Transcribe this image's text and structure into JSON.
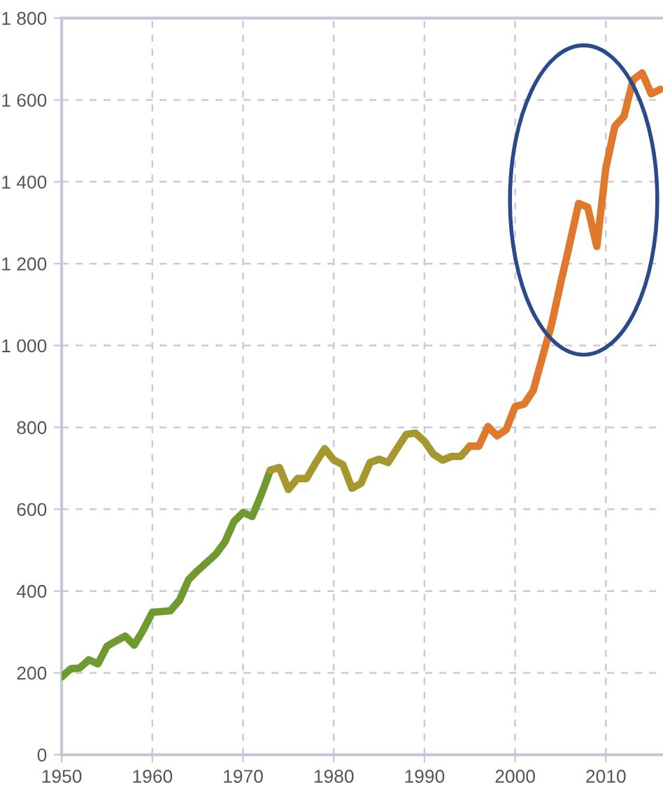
{
  "chart_data": {
    "type": "line",
    "series": [
      {
        "color": "#6f9a2f",
        "x": [
          1950,
          1951,
          1952,
          1953,
          1954,
          1955,
          1956,
          1957,
          1958,
          1959,
          1960,
          1961,
          1962,
          1963,
          1964,
          1965,
          1966,
          1967,
          1968,
          1969,
          1970,
          1971,
          1972,
          1973
        ],
        "values": [
          190,
          210,
          212,
          232,
          222,
          265,
          278,
          290,
          268,
          305,
          348,
          350,
          352,
          378,
          428,
          450,
          470,
          490,
          520,
          570,
          592,
          582,
          635,
          695
        ]
      },
      {
        "color": "#a6982f",
        "x": [
          1973,
          1974,
          1975,
          1976,
          1977,
          1978,
          1979,
          1980,
          1981,
          1982,
          1983,
          1984,
          1985,
          1986,
          1987,
          1988,
          1989,
          1990,
          1991,
          1992,
          1993,
          1994,
          1995
        ],
        "values": [
          695,
          702,
          648,
          675,
          675,
          713,
          748,
          720,
          709,
          651,
          663,
          714,
          722,
          714,
          749,
          783,
          786,
          766,
          734,
          720,
          729,
          729,
          754
        ]
      },
      {
        "color": "#e0782e",
        "x": [
          1995,
          1996,
          1997,
          1998,
          1999,
          2000,
          2001,
          2002,
          2003,
          2004,
          2005,
          2006,
          2007,
          2008,
          2009,
          2010,
          2011,
          2012,
          2013,
          2014,
          2015,
          2016
        ],
        "values": [
          754,
          754,
          802,
          779,
          794,
          851,
          857,
          890,
          971,
          1050,
          1151,
          1247,
          1347,
          1338,
          1242,
          1434,
          1536,
          1560,
          1649,
          1666,
          1615,
          1626
        ]
      }
    ],
    "xlim": [
      1950,
      2016.3
    ],
    "xticks": [
      1950,
      1960,
      1970,
      1980,
      1990,
      2000,
      2010
    ],
    "ylim": [
      0,
      1800
    ],
    "yticks": [
      0,
      200,
      400,
      600,
      800,
      {
        "value": 1000,
        "label": "1 000"
      },
      {
        "value": 1200,
        "label": "1 200"
      },
      {
        "value": 1400,
        "label": "1 400"
      },
      {
        "value": 1600,
        "label": "1 600"
      },
      {
        "value": 1800,
        "label": "1 800"
      }
    ],
    "grid": true,
    "marker": "none",
    "line_style": "solid",
    "legend": false
  }
}
